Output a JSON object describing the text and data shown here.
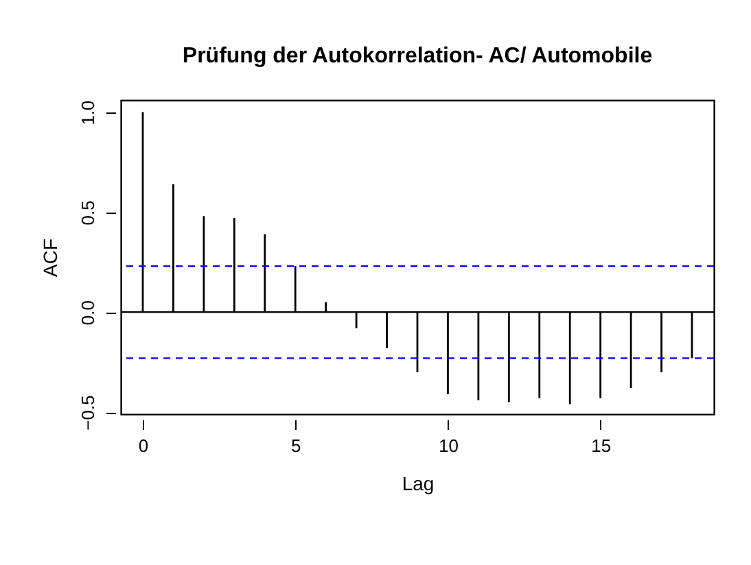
{
  "chart_data": {
    "type": "bar",
    "title": "Prüfung der Autokorrelation- AC/ Automobile",
    "xlabel": "Lag",
    "ylabel": "ACF",
    "x": [
      0,
      1,
      2,
      3,
      4,
      5,
      6,
      7,
      8,
      9,
      10,
      11,
      12,
      13,
      14,
      15,
      16,
      17,
      18
    ],
    "series": [
      {
        "color": "#000000",
        "values": [
          1.0,
          0.64,
          0.48,
          0.47,
          0.39,
          0.23,
          0.05,
          -0.08,
          -0.18,
          -0.3,
          -0.41,
          -0.44,
          -0.45,
          -0.43,
          -0.46,
          -0.43,
          -0.38,
          -0.3,
          -0.23
        ]
      }
    ],
    "xlim": [
      -0.72,
      18.72
    ],
    "xticks": [
      0,
      5,
      10,
      15
    ],
    "ylim": [
      -0.51,
      1.06
    ],
    "yticks": [
      -0.5,
      {
        "value": 0,
        "label": "0.0"
      },
      0.5,
      {
        "value": 1,
        "label": "1.0"
      }
    ],
    "ref_lines": [
      {
        "axis": "y",
        "value": 0,
        "color": "#000000",
        "line_style": "solid"
      },
      {
        "axis": "y",
        "value": 0.23,
        "color": "#0000ff",
        "line_style": "dashed"
      },
      {
        "axis": "y",
        "value": -0.23,
        "color": "#0000ff",
        "line_style": "dashed"
      }
    ],
    "grid": false
  }
}
